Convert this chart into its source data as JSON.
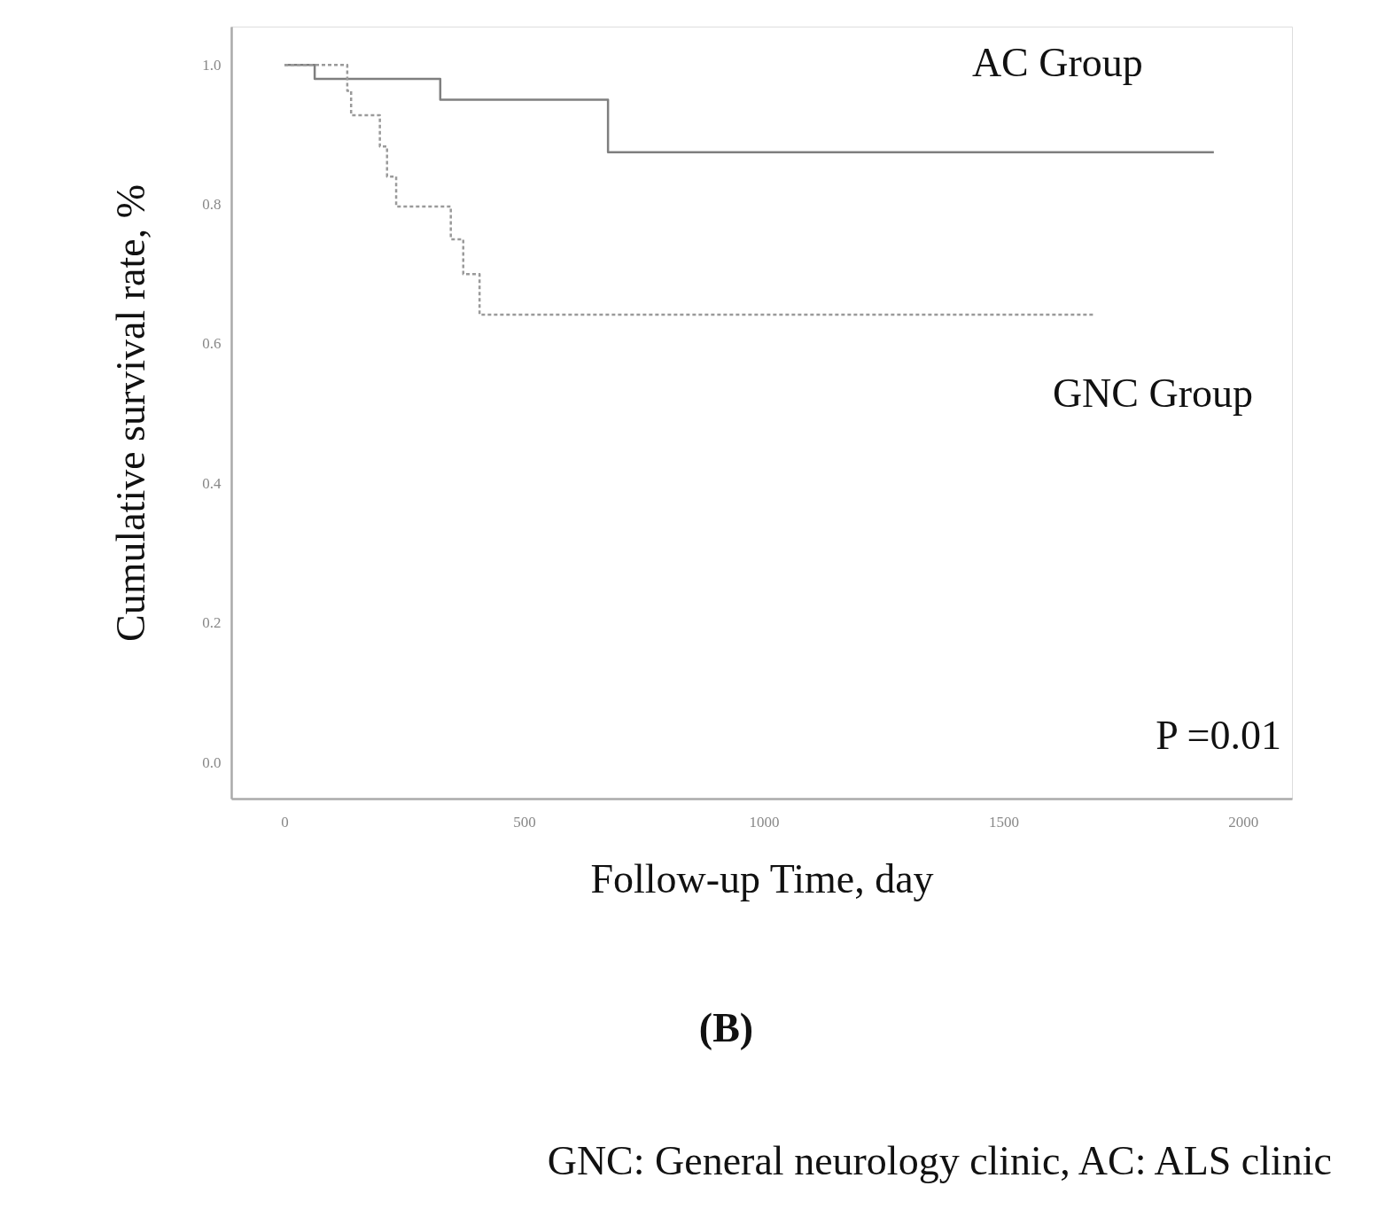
{
  "chart_data": {
    "type": "step",
    "xlabel": "Follow-up Time, day",
    "ylabel": "Cumulative survival rate, %",
    "xlim": [
      -111,
      2102
    ],
    "xticks": [
      0,
      500,
      1000,
      1500,
      2000
    ],
    "ylim": [
      -0.052,
      1.055
    ],
    "yticks": [
      {
        "value": 0,
        "label": "0.0"
      },
      0.2,
      0.4,
      0.6,
      0.8,
      {
        "value": 1,
        "label": "1.0"
      }
    ],
    "grid": false,
    "marker": "none",
    "series": [
      {
        "name": "AC Group",
        "color": "#7f7f7f",
        "line_style": "solid",
        "x": [
          0,
          63,
          325,
          675,
          1939
        ],
        "values": [
          1.0,
          0.98,
          0.95,
          0.875,
          0.875
        ]
      },
      {
        "name": "GNC Group",
        "color": "#9a9a9a",
        "line_style": "dashed",
        "x": [
          0,
          131,
          139,
          199,
          214,
          233,
          347,
          373,
          407,
          1688
        ],
        "values": [
          1.0,
          0.963,
          0.928,
          0.883,
          0.84,
          0.797,
          0.75,
          0.7,
          0.642,
          0.642
        ]
      }
    ],
    "annotations": [
      "P =0.01",
      "(B)",
      "GNC: General neurology clinic, AC: ALS clinic"
    ]
  }
}
